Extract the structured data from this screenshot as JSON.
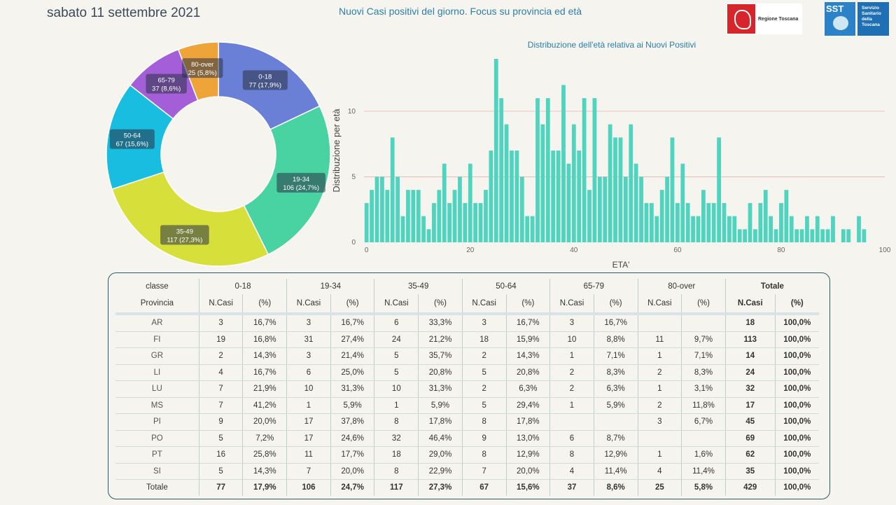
{
  "header": {
    "date": "sabato 11 settembre 2021",
    "title": "Nuovi Casi positivi del giorno. Focus su provincia ed età",
    "logo_rt": "Regione Toscana",
    "logo_sst_short": "SST",
    "logo_sst_lines": [
      "Servizio",
      "Sanitario",
      "della",
      "Toscana"
    ]
  },
  "chart_data": [
    {
      "type": "pie",
      "variant": "donut",
      "slices": [
        {
          "label": "0-18",
          "value": 77,
          "pct": "17,9%",
          "color": "#6a7fd6"
        },
        {
          "label": "19-34",
          "value": 106,
          "pct": "24,7%",
          "color": "#4ad3a2"
        },
        {
          "label": "35-49",
          "value": 117,
          "pct": "27,3%",
          "color": "#d7e03a"
        },
        {
          "label": "50-64",
          "value": 67,
          "pct": "15,6%",
          "color": "#19bde0"
        },
        {
          "label": "65-79",
          "value": 37,
          "pct": "8,6%",
          "color": "#a45fd8"
        },
        {
          "label": "80-over",
          "value": 25,
          "pct": "5,8%",
          "color": "#efa43a"
        }
      ]
    },
    {
      "type": "bar",
      "title": "Distribuzione dell'età relativa ai Nuovi Positivi",
      "xlabel": "ETA'",
      "ylabel": "Distribuzione per età",
      "xlim": [
        -0.5,
        100
      ],
      "ylim": [
        0,
        14
      ],
      "xticks": [
        0,
        20,
        40,
        60,
        80,
        100
      ],
      "yticks": [
        0,
        5,
        10
      ],
      "grid": "horizontal",
      "color": "#4fd4bf",
      "x": [
        0,
        1,
        2,
        3,
        4,
        5,
        6,
        7,
        8,
        9,
        10,
        11,
        12,
        13,
        14,
        15,
        16,
        17,
        18,
        19,
        20,
        21,
        22,
        23,
        24,
        25,
        26,
        27,
        28,
        29,
        30,
        31,
        32,
        33,
        34,
        35,
        36,
        37,
        38,
        39,
        40,
        41,
        42,
        43,
        44,
        45,
        46,
        47,
        48,
        49,
        50,
        51,
        52,
        53,
        54,
        55,
        56,
        57,
        58,
        59,
        60,
        61,
        62,
        63,
        64,
        65,
        66,
        67,
        68,
        69,
        70,
        71,
        72,
        73,
        74,
        75,
        76,
        77,
        78,
        79,
        80,
        81,
        82,
        83,
        84,
        85,
        86,
        87,
        88,
        89,
        90,
        91,
        92,
        93,
        94,
        95,
        96
      ],
      "values": [
        3,
        4,
        5,
        5,
        4,
        8,
        5,
        2,
        4,
        4,
        4,
        2,
        1,
        3,
        4,
        6,
        3,
        4,
        5,
        3,
        6,
        3,
        3,
        4,
        7,
        14,
        11,
        9,
        7,
        7,
        5,
        2,
        2,
        11,
        9,
        11,
        7,
        7,
        12,
        6,
        9,
        7,
        11,
        4,
        11,
        5,
        5,
        9,
        8,
        8,
        5,
        9,
        6,
        5,
        3,
        3,
        2,
        4,
        5,
        8,
        3,
        6,
        3,
        2,
        2,
        4,
        3,
        3,
        8,
        3,
        2,
        2,
        1,
        1,
        3,
        1,
        3,
        4,
        2,
        1,
        3,
        4,
        2,
        1,
        1,
        2,
        1,
        2,
        1,
        1,
        2,
        0,
        1,
        1,
        0,
        2,
        1
      ]
    }
  ],
  "table": {
    "group_header_label": "classe",
    "province_header": "Provincia",
    "groups": [
      "0-18",
      "19-34",
      "35-49",
      "50-64",
      "65-79",
      "80-over"
    ],
    "total_label": "Totale",
    "sub_cols": [
      "N.Casi",
      "(%)"
    ],
    "rows": [
      {
        "prov": "AR",
        "cells": [
          "3",
          "16,7%",
          "3",
          "16,7%",
          "6",
          "33,3%",
          "3",
          "16,7%",
          "3",
          "16,7%",
          "",
          ""
        ],
        "tot": "18",
        "totpct": "100,0%"
      },
      {
        "prov": "FI",
        "cells": [
          "19",
          "16,8%",
          "31",
          "27,4%",
          "24",
          "21,2%",
          "18",
          "15,9%",
          "10",
          "8,8%",
          "11",
          "9,7%"
        ],
        "tot": "113",
        "totpct": "100,0%"
      },
      {
        "prov": "GR",
        "cells": [
          "2",
          "14,3%",
          "3",
          "21,4%",
          "5",
          "35,7%",
          "2",
          "14,3%",
          "1",
          "7,1%",
          "1",
          "7,1%"
        ],
        "tot": "14",
        "totpct": "100,0%"
      },
      {
        "prov": "LI",
        "cells": [
          "4",
          "16,7%",
          "6",
          "25,0%",
          "5",
          "20,8%",
          "5",
          "20,8%",
          "2",
          "8,3%",
          "2",
          "8,3%"
        ],
        "tot": "24",
        "totpct": "100,0%"
      },
      {
        "prov": "LU",
        "cells": [
          "7",
          "21,9%",
          "10",
          "31,3%",
          "10",
          "31,3%",
          "2",
          "6,3%",
          "2",
          "6,3%",
          "1",
          "3,1%"
        ],
        "tot": "32",
        "totpct": "100,0%"
      },
      {
        "prov": "MS",
        "cells": [
          "7",
          "41,2%",
          "1",
          "5,9%",
          "1",
          "5,9%",
          "5",
          "29,4%",
          "1",
          "5,9%",
          "2",
          "11,8%"
        ],
        "tot": "17",
        "totpct": "100,0%"
      },
      {
        "prov": "PI",
        "cells": [
          "9",
          "20,0%",
          "17",
          "37,8%",
          "8",
          "17,8%",
          "8",
          "17,8%",
          "",
          "",
          "3",
          "6,7%"
        ],
        "tot": "45",
        "totpct": "100,0%"
      },
      {
        "prov": "PO",
        "cells": [
          "5",
          "7,2%",
          "17",
          "24,6%",
          "32",
          "46,4%",
          "9",
          "13,0%",
          "6",
          "8,7%",
          "",
          ""
        ],
        "tot": "69",
        "totpct": "100,0%"
      },
      {
        "prov": "PT",
        "cells": [
          "16",
          "25,8%",
          "11",
          "17,7%",
          "18",
          "29,0%",
          "8",
          "12,9%",
          "8",
          "12,9%",
          "1",
          "1,6%"
        ],
        "tot": "62",
        "totpct": "100,0%"
      },
      {
        "prov": "SI",
        "cells": [
          "5",
          "14,3%",
          "7",
          "20,0%",
          "8",
          "22,9%",
          "7",
          "20,0%",
          "4",
          "11,4%",
          "4",
          "11,4%"
        ],
        "tot": "35",
        "totpct": "100,0%"
      }
    ],
    "total_row": {
      "prov": "Totale",
      "cells": [
        "77",
        "17,9%",
        "106",
        "24,7%",
        "117",
        "27,3%",
        "67",
        "15,6%",
        "37",
        "8,6%",
        "25",
        "5,8%"
      ],
      "tot": "429",
      "totpct": "100,0%"
    }
  }
}
